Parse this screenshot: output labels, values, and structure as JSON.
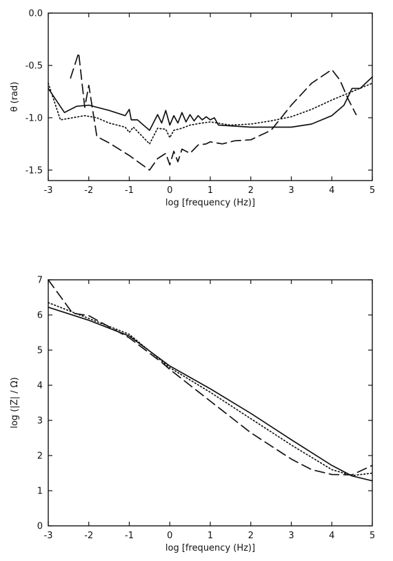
{
  "chart_data": [
    {
      "type": "line",
      "xlabel": "log [frequency (Hz)]",
      "ylabel": "θ (rad)",
      "xlim": [
        -3,
        5
      ],
      "ylim": [
        -1.6,
        0.0
      ],
      "x_ticks": [
        -3,
        -2,
        -1,
        0,
        1,
        2,
        3,
        4,
        5
      ],
      "y_ticks": [
        0.0,
        -0.5,
        -1.0,
        -1.5
      ],
      "x_tick_labels": [
        "-3",
        "-2",
        "-1",
        "0",
        "1",
        "2",
        "3",
        "4",
        "5"
      ],
      "y_tick_labels": [
        "0.0",
        "-0.5",
        "-1.0",
        "-1.5"
      ],
      "grid": false,
      "series": [
        {
          "style": "solid",
          "points": [
            [
              -3,
              -0.72
            ],
            [
              -2.6,
              -0.95
            ],
            [
              -2.3,
              -0.89
            ],
            [
              -2.0,
              -0.88
            ],
            [
              -1.5,
              -0.93
            ],
            [
              -1.1,
              -0.98
            ],
            [
              -1.0,
              -0.92
            ],
            [
              -0.95,
              -1.02
            ],
            [
              -0.8,
              -1.02
            ],
            [
              -0.5,
              -1.12
            ],
            [
              -0.3,
              -0.97
            ],
            [
              -0.2,
              -1.05
            ],
            [
              -0.1,
              -0.93
            ],
            [
              0.0,
              -1.07
            ],
            [
              0.1,
              -0.98
            ],
            [
              0.2,
              -1.05
            ],
            [
              0.3,
              -0.95
            ],
            [
              0.4,
              -1.04
            ],
            [
              0.5,
              -0.97
            ],
            [
              0.6,
              -1.03
            ],
            [
              0.7,
              -0.98
            ],
            [
              0.8,
              -1.02
            ],
            [
              0.9,
              -0.99
            ],
            [
              1.0,
              -1.02
            ],
            [
              1.1,
              -1.0
            ],
            [
              1.2,
              -1.07
            ],
            [
              2.0,
              -1.09
            ],
            [
              2.5,
              -1.09
            ],
            [
              3.0,
              -1.09
            ],
            [
              3.5,
              -1.06
            ],
            [
              4.0,
              -0.98
            ],
            [
              4.3,
              -0.88
            ],
            [
              4.5,
              -0.72
            ],
            [
              4.7,
              -0.72
            ],
            [
              5.0,
              -0.61
            ]
          ]
        },
        {
          "style": "dotted",
          "points": [
            [
              -3,
              -0.67
            ],
            [
              -2.7,
              -1.02
            ],
            [
              -2.4,
              -1.0
            ],
            [
              -2.1,
              -0.98
            ],
            [
              -1.8,
              -1.0
            ],
            [
              -1.5,
              -1.05
            ],
            [
              -1.1,
              -1.09
            ],
            [
              -1.0,
              -1.14
            ],
            [
              -0.9,
              -1.09
            ],
            [
              -0.5,
              -1.25
            ],
            [
              -0.3,
              -1.1
            ],
            [
              -0.1,
              -1.11
            ],
            [
              0.0,
              -1.19
            ],
            [
              0.1,
              -1.12
            ],
            [
              0.3,
              -1.1
            ],
            [
              0.5,
              -1.07
            ],
            [
              0.8,
              -1.05
            ],
            [
              1.0,
              -1.04
            ],
            [
              1.5,
              -1.07
            ],
            [
              2.0,
              -1.06
            ],
            [
              2.5,
              -1.03
            ],
            [
              3.0,
              -0.99
            ],
            [
              3.5,
              -0.92
            ],
            [
              4.0,
              -0.83
            ],
            [
              4.5,
              -0.75
            ],
            [
              5.0,
              -0.67
            ]
          ]
        },
        {
          "style": "dashed",
          "points": [
            [
              -2.45,
              -0.62
            ],
            [
              -2.25,
              -0.38
            ],
            [
              -2.1,
              -0.9
            ],
            [
              -2.0,
              -0.69
            ],
            [
              -1.8,
              -1.18
            ],
            [
              -1.5,
              -1.24
            ],
            [
              -1.0,
              -1.36
            ],
            [
              -0.5,
              -1.5
            ],
            [
              -0.3,
              -1.39
            ],
            [
              -0.1,
              -1.34
            ],
            [
              0.0,
              -1.45
            ],
            [
              0.1,
              -1.32
            ],
            [
              0.2,
              -1.42
            ],
            [
              0.3,
              -1.3
            ],
            [
              0.5,
              -1.34
            ],
            [
              0.7,
              -1.26
            ],
            [
              0.9,
              -1.25
            ],
            [
              1.0,
              -1.23
            ],
            [
              1.3,
              -1.25
            ],
            [
              1.6,
              -1.22
            ],
            [
              2.0,
              -1.21
            ],
            [
              2.5,
              -1.12
            ],
            [
              3.0,
              -0.88
            ],
            [
              3.5,
              -0.67
            ],
            [
              4.0,
              -0.54
            ],
            [
              4.2,
              -0.64
            ],
            [
              4.4,
              -0.82
            ],
            [
              4.6,
              -0.97
            ]
          ]
        }
      ]
    },
    {
      "type": "line",
      "xlabel": "log [frequency (Hz)]",
      "ylabel": "log (|Z| / Ω)",
      "xlim": [
        -3,
        5
      ],
      "ylim": [
        0,
        7
      ],
      "x_ticks": [
        -3,
        -2,
        -1,
        0,
        1,
        2,
        3,
        4,
        5
      ],
      "y_ticks": [
        0,
        1,
        2,
        3,
        4,
        5,
        6,
        7
      ],
      "x_tick_labels": [
        "-3",
        "-2",
        "-1",
        "0",
        "1",
        "2",
        "3",
        "4",
        "5"
      ],
      "y_tick_labels": [
        "0",
        "1",
        "2",
        "3",
        "4",
        "5",
        "6",
        "7"
      ],
      "grid": false,
      "series": [
        {
          "style": "solid",
          "points": [
            [
              -3,
              6.22
            ],
            [
              -2,
              5.85
            ],
            [
              -1,
              5.4
            ],
            [
              0,
              4.55
            ],
            [
              1,
              3.9
            ],
            [
              2,
              3.2
            ],
            [
              3,
              2.45
            ],
            [
              4,
              1.72
            ],
            [
              4.5,
              1.42
            ],
            [
              5,
              1.28
            ]
          ]
        },
        {
          "style": "dotted",
          "points": [
            [
              -3,
              6.35
            ],
            [
              -2,
              5.9
            ],
            [
              -1,
              5.45
            ],
            [
              0,
              4.5
            ],
            [
              1,
              3.8
            ],
            [
              2,
              3.05
            ],
            [
              3,
              2.3
            ],
            [
              4,
              1.6
            ],
            [
              4.5,
              1.43
            ],
            [
              5,
              1.5
            ]
          ]
        },
        {
          "style": "dashed",
          "points": [
            [
              -3,
              7.0
            ],
            [
              -2.4,
              6.05
            ],
            [
              -2,
              5.98
            ],
            [
              -1,
              5.35
            ],
            [
              -0.2,
              4.65
            ],
            [
              0,
              4.45
            ],
            [
              0.5,
              4.0
            ],
            [
              1,
              3.55
            ],
            [
              2,
              2.65
            ],
            [
              3,
              1.9
            ],
            [
              3.5,
              1.6
            ],
            [
              4,
              1.46
            ],
            [
              4.5,
              1.45
            ],
            [
              5,
              1.72
            ]
          ]
        }
      ]
    }
  ]
}
